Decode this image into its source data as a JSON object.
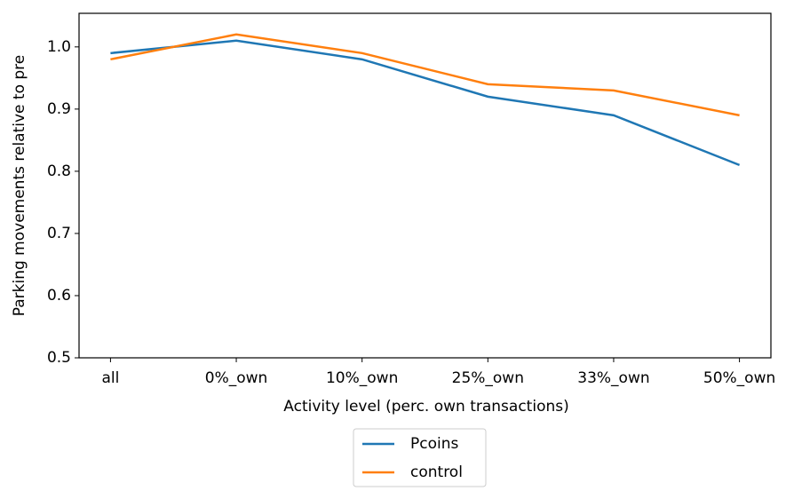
{
  "chart_data": {
    "type": "line",
    "xlabel": "Activity level (perc. own transactions)",
    "ylabel": "Parking movements relative to pre",
    "categories": [
      "all",
      "0%_own",
      "10%_own",
      "25%_own",
      "33%_own",
      "50%_own"
    ],
    "series": [
      {
        "name": "Pcoins",
        "color": "#1f77b4",
        "values": [
          0.99,
          1.01,
          0.98,
          0.92,
          0.89,
          0.81
        ]
      },
      {
        "name": "control",
        "color": "#ff7f0e",
        "values": [
          0.98,
          1.02,
          0.99,
          0.94,
          0.93,
          0.89
        ]
      }
    ],
    "ylim": [
      0.5,
      1.054
    ],
    "yticks": [
      0.5,
      0.6,
      0.7,
      0.8,
      0.9,
      {
        "value": 1,
        "label": "1.0"
      }
    ],
    "grid": false,
    "legend": "below"
  }
}
